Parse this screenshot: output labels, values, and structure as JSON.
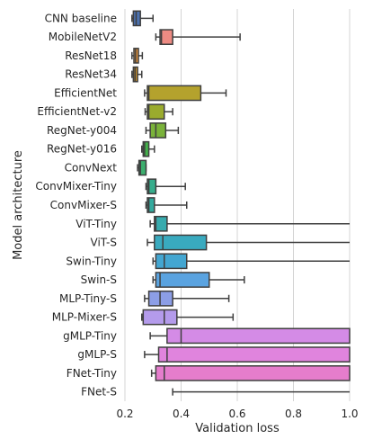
{
  "chart_data": {
    "type": "boxplot",
    "orientation": "horizontal",
    "xlabel": "Validation loss",
    "ylabel": "Model architecture",
    "xlim": [
      0.2,
      1.0
    ],
    "xticks": [
      0.2,
      0.4,
      0.6,
      0.8,
      1.0
    ],
    "xtick_labels": [
      "0.2",
      "0.4",
      "0.6",
      "0.8",
      "1.0"
    ],
    "grid": true,
    "categories": [
      "CNN baseline",
      "MobileNetV2",
      "ResNet18",
      "ResNet34",
      "EfficientNet",
      "EfficientNet-v2",
      "RegNet-y004",
      "RegNet-y016",
      "ConvNext",
      "ConvMixer-Tiny",
      "ConvMixer-S",
      "ViT-Tiny",
      "ViT-S",
      "Swin-Tiny",
      "Swin-S",
      "MLP-Tiny-S",
      "MLP-Mixer-S",
      "gMLP-Tiny",
      "gMLP-S",
      "FNet-Tiny",
      "FNet-S"
    ],
    "boxes": [
      {
        "whislo": 0.225,
        "q1": 0.23,
        "med": 0.24,
        "q3": 0.255,
        "whishi": 0.3,
        "color": "#4c72b0"
      },
      {
        "whislo": 0.31,
        "q1": 0.325,
        "med": 0.33,
        "q3": 0.37,
        "whishi": 0.61,
        "color": "#ee8b83"
      },
      {
        "whislo": 0.225,
        "q1": 0.232,
        "med": 0.238,
        "q3": 0.248,
        "whishi": 0.262,
        "color": "#e2923b"
      },
      {
        "whislo": 0.225,
        "q1": 0.23,
        "med": 0.236,
        "q3": 0.245,
        "whishi": 0.26,
        "color": "#c18a2a"
      },
      {
        "whislo": 0.27,
        "q1": 0.28,
        "med": 0.285,
        "q3": 0.47,
        "whishi": 0.56,
        "color": "#b4a22d"
      },
      {
        "whislo": 0.272,
        "q1": 0.28,
        "med": 0.285,
        "q3": 0.34,
        "whishi": 0.37,
        "color": "#9aab2d"
      },
      {
        "whislo": 0.275,
        "q1": 0.29,
        "med": 0.31,
        "q3": 0.345,
        "whishi": 0.39,
        "color": "#7ab23a"
      },
      {
        "whislo": 0.26,
        "q1": 0.265,
        "med": 0.27,
        "q3": 0.285,
        "whishi": 0.305,
        "color": "#44b14b"
      },
      {
        "whislo": 0.245,
        "q1": 0.25,
        "med": 0.255,
        "q3": 0.275,
        "whishi": 0.275,
        "color": "#3cae6e"
      },
      {
        "whislo": 0.275,
        "q1": 0.28,
        "med": 0.285,
        "q3": 0.31,
        "whishi": 0.415,
        "color": "#36ad8c"
      },
      {
        "whislo": 0.275,
        "q1": 0.28,
        "med": 0.285,
        "q3": 0.305,
        "whishi": 0.42,
        "color": "#34aa9e"
      },
      {
        "whislo": 0.29,
        "q1": 0.305,
        "med": 0.31,
        "q3": 0.35,
        "whishi": 1.0,
        "color": "#37abae"
      },
      {
        "whislo": 0.28,
        "q1": 0.305,
        "med": 0.335,
        "q3": 0.49,
        "whishi": 1.0,
        "color": "#39aabf"
      },
      {
        "whislo": 0.3,
        "q1": 0.31,
        "med": 0.34,
        "q3": 0.42,
        "whishi": 1.0,
        "color": "#43a6d1"
      },
      {
        "whislo": 0.3,
        "q1": 0.31,
        "med": 0.325,
        "q3": 0.5,
        "whishi": 0.625,
        "color": "#5aa3e0"
      },
      {
        "whislo": 0.27,
        "q1": 0.285,
        "med": 0.325,
        "q3": 0.37,
        "whishi": 0.57,
        "color": "#8c9ee6"
      },
      {
        "whislo": 0.26,
        "q1": 0.265,
        "med": 0.34,
        "q3": 0.385,
        "whishi": 0.585,
        "color": "#b49beb"
      },
      {
        "whislo": 0.29,
        "q1": 0.35,
        "med": 0.4,
        "q3": 1.0,
        "whishi": 1.0,
        "color": "#d48be6"
      },
      {
        "whislo": 0.27,
        "q1": 0.32,
        "med": 0.35,
        "q3": 1.0,
        "whishi": 1.0,
        "color": "#e084dd"
      },
      {
        "whislo": 0.295,
        "q1": 0.31,
        "med": 0.34,
        "q3": 1.0,
        "whishi": 1.0,
        "color": "#e57dcc"
      },
      {
        "whislo": 0.37,
        "q1": null,
        "med": null,
        "q3": null,
        "whishi": 1.0,
        "color": "#e87bba"
      }
    ]
  }
}
